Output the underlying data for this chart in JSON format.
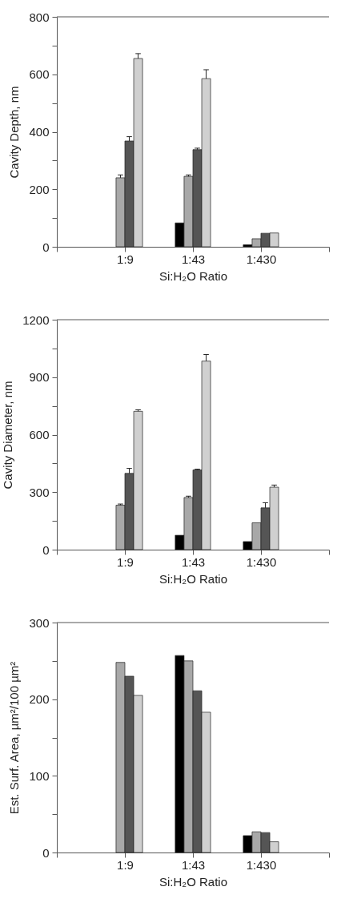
{
  "chart_data": [
    {
      "type": "bar",
      "xlabel": "Si:H₂O Ratio",
      "ylabel": "Cavity Depth, nm",
      "categories": [
        null,
        "1:9",
        "1:43",
        "1:430",
        null
      ],
      "ylim": [
        0,
        800
      ],
      "yticks": [
        0,
        {
          "value": 100,
          "label": null
        },
        200,
        {
          "value": 300,
          "label": null
        },
        400,
        {
          "value": 500,
          "label": null
        },
        600,
        {
          "value": 700,
          "label": null
        },
        800
      ],
      "series": [
        {
          "color": "#000000",
          "values": [
            null,
            null,
            83,
            7,
            null
          ]
        },
        {
          "color": "#a8a8a8",
          "values": [
            null,
            240,
            245,
            28,
            null
          ],
          "errors": [
            null,
            [
              240,
              250
            ],
            [
              245,
              250
            ],
            null,
            null
          ]
        },
        {
          "color": "#555555",
          "values": [
            null,
            368,
            338,
            47,
            null
          ],
          "errors": [
            null,
            [
              368,
              383
            ],
            [
              338,
              343
            ],
            null,
            null
          ]
        },
        {
          "color": "#d0d0d0",
          "values": [
            null,
            655,
            585,
            48,
            null
          ],
          "errors": [
            null,
            [
              655,
              672
            ],
            [
              585,
              616
            ],
            null,
            null
          ]
        }
      ]
    },
    {
      "type": "bar",
      "xlabel": "Si:H₂O Ratio",
      "ylabel": "Cavity Diameter, nm",
      "categories": [
        null,
        "1:9",
        "1:43",
        "1:430",
        null
      ],
      "ylim": [
        0,
        1200
      ],
      "yticks": [
        0,
        {
          "value": 150,
          "label": null
        },
        300,
        {
          "value": 450,
          "label": null
        },
        600,
        {
          "value": 750,
          "label": null
        },
        900,
        {
          "value": 1050,
          "label": null
        },
        1200
      ],
      "series": [
        {
          "color": "#000000",
          "values": [
            null,
            null,
            75,
            42,
            null
          ]
        },
        {
          "color": "#a8a8a8",
          "values": [
            null,
            232,
            272,
            140,
            null
          ],
          "errors": [
            null,
            [
              232,
              238
            ],
            [
              272,
              279
            ],
            null,
            null
          ]
        },
        {
          "color": "#555555",
          "values": [
            null,
            398,
            416,
            218,
            null
          ],
          "errors": [
            null,
            [
              398,
              424
            ],
            [
              416,
              420
            ],
            [
              218,
              245
            ],
            null
          ]
        },
        {
          "color": "#d0d0d0",
          "values": [
            null,
            722,
            984,
            326,
            null
          ],
          "errors": [
            null,
            [
              722,
              730
            ],
            [
              984,
              1018
            ],
            [
              326,
              337
            ],
            null
          ]
        }
      ]
    },
    {
      "type": "bar",
      "xlabel": "Si:H₂O Ratio",
      "ylabel": "Est. Surf. Area, µm²/100 µm²",
      "categories": [
        null,
        "1:9",
        "1:43",
        "1:430",
        null
      ],
      "ylim": [
        0,
        300
      ],
      "yticks": [
        0,
        {
          "value": 50,
          "label": null
        },
        100,
        {
          "value": 150,
          "label": null
        },
        200,
        {
          "value": 250,
          "label": null
        },
        300
      ],
      "series": [
        {
          "color": "#000000",
          "values": [
            null,
            null,
            257,
            22,
            null
          ]
        },
        {
          "color": "#a8a8a8",
          "values": [
            null,
            248,
            250,
            27,
            null
          ]
        },
        {
          "color": "#555555",
          "values": [
            null,
            230,
            211,
            26,
            null
          ]
        },
        {
          "color": "#d0d0d0",
          "values": [
            null,
            205,
            183,
            14,
            null
          ]
        }
      ]
    }
  ]
}
